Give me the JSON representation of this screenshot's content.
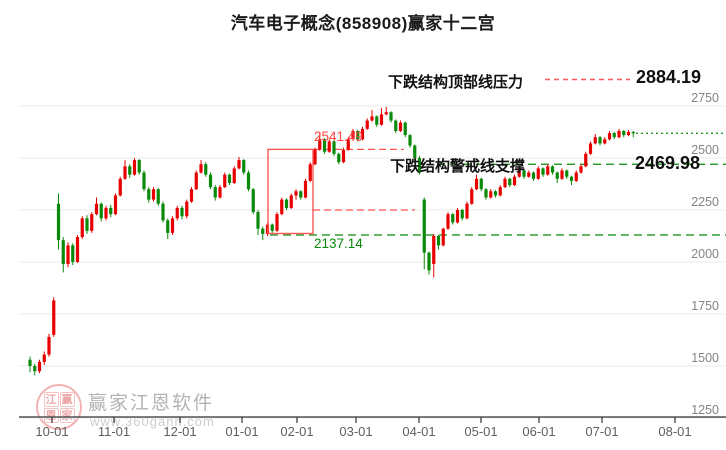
{
  "title": "汽车电子概念(858908)赢家十二宫",
  "annotations": {
    "resistance": {
      "label": "下跌结构顶部线压力",
      "value": "2884.19",
      "price": 2884.19,
      "line_color": "#ff5555",
      "line_style": "dashed"
    },
    "support": {
      "label": "下跌结构警戒线支撑",
      "value": "2469.98",
      "price": 2469.98,
      "line_color": "#0a8a0a",
      "line_style": "dashed"
    }
  },
  "structure_box": {
    "top_label": "2541.49",
    "top_price": 2541.49,
    "bottom_label": "2137.14",
    "bottom_price": 2137.14,
    "mid_price": 2250,
    "color": "#ff5555"
  },
  "watermark": {
    "brand": "赢家江恩软件",
    "url": "www.360gann.com",
    "logo_chars": [
      "江",
      "赢",
      "恩",
      "家"
    ]
  },
  "chart_data": {
    "type": "candlestick",
    "title": "汽车电子概念(858908)赢家十二宫",
    "y_axis": {
      "side": "right",
      "min": 1250,
      "max": 2750,
      "ticks": [
        2750,
        2500,
        2250,
        2000,
        1750,
        1500,
        1250
      ]
    },
    "x_axis": {
      "ticks": [
        "10-01",
        "11-01",
        "12-01",
        "01-01",
        "02-01",
        "03-01",
        "04-01",
        "05-01",
        "06-01",
        "07-01",
        "08-01"
      ],
      "positions": [
        52,
        114,
        180,
        242,
        297,
        356,
        419,
        481,
        539,
        602,
        675
      ]
    },
    "colors": {
      "up": "#e80000",
      "down": "#0a8a0a",
      "grid": "#e8e8e8",
      "axis": "#333333"
    },
    "grid": true,
    "last_price": 2619,
    "candles": [
      [
        1530,
        1545,
        1470,
        1500
      ],
      [
        1500,
        1510,
        1455,
        1475
      ],
      [
        1475,
        1530,
        1465,
        1520
      ],
      [
        1520,
        1570,
        1505,
        1555
      ],
      [
        1555,
        1655,
        1545,
        1640
      ],
      [
        1650,
        1830,
        1640,
        1815
      ],
      [
        2280,
        2330,
        2060,
        2105
      ],
      [
        2105,
        2120,
        1950,
        1990
      ],
      [
        1990,
        2095,
        1975,
        2080
      ],
      [
        2080,
        2090,
        1985,
        2000
      ],
      [
        2000,
        2130,
        1995,
        2120
      ],
      [
        2120,
        2220,
        2110,
        2210
      ],
      [
        2210,
        2225,
        2135,
        2150
      ],
      [
        2150,
        2240,
        2140,
        2230
      ],
      [
        2230,
        2310,
        2225,
        2280
      ],
      [
        2280,
        2285,
        2195,
        2210
      ],
      [
        2210,
        2270,
        2200,
        2260
      ],
      [
        2260,
        2275,
        2215,
        2230
      ],
      [
        2230,
        2330,
        2225,
        2320
      ],
      [
        2320,
        2410,
        2315,
        2400
      ],
      [
        2400,
        2490,
        2395,
        2460
      ],
      [
        2460,
        2470,
        2405,
        2420
      ],
      [
        2420,
        2500,
        2415,
        2490
      ],
      [
        2490,
        2495,
        2420,
        2430
      ],
      [
        2430,
        2440,
        2340,
        2350
      ],
      [
        2350,
        2360,
        2285,
        2300
      ],
      [
        2300,
        2360,
        2290,
        2350
      ],
      [
        2350,
        2355,
        2270,
        2280
      ],
      [
        2280,
        2290,
        2190,
        2200
      ],
      [
        2200,
        2210,
        2110,
        2140
      ],
      [
        2140,
        2220,
        2130,
        2210
      ],
      [
        2210,
        2270,
        2200,
        2260
      ],
      [
        2260,
        2270,
        2205,
        2220
      ],
      [
        2220,
        2300,
        2210,
        2290
      ],
      [
        2290,
        2360,
        2285,
        2350
      ],
      [
        2350,
        2440,
        2345,
        2430
      ],
      [
        2430,
        2490,
        2425,
        2470
      ],
      [
        2470,
        2480,
        2410,
        2420
      ],
      [
        2420,
        2430,
        2350,
        2360
      ],
      [
        2360,
        2370,
        2295,
        2310
      ],
      [
        2310,
        2370,
        2305,
        2360
      ],
      [
        2360,
        2430,
        2355,
        2420
      ],
      [
        2420,
        2425,
        2370,
        2380
      ],
      [
        2380,
        2460,
        2375,
        2450
      ],
      [
        2450,
        2505,
        2445,
        2490
      ],
      [
        2490,
        2495,
        2420,
        2430
      ],
      [
        2430,
        2440,
        2340,
        2350
      ],
      [
        2350,
        2355,
        2230,
        2240
      ],
      [
        2240,
        2250,
        2130,
        2160
      ],
      [
        2160,
        2170,
        2105,
        2135
      ],
      [
        2135,
        2190,
        2125,
        2180
      ],
      [
        2180,
        2185,
        2140,
        2150
      ],
      [
        2150,
        2240,
        2145,
        2230
      ],
      [
        2230,
        2310,
        2225,
        2300
      ],
      [
        2300,
        2305,
        2250,
        2260
      ],
      [
        2260,
        2330,
        2255,
        2320
      ],
      [
        2320,
        2350,
        2300,
        2340
      ],
      [
        2340,
        2345,
        2300,
        2310
      ],
      [
        2310,
        2400,
        2305,
        2390
      ],
      [
        2390,
        2480,
        2385,
        2470
      ],
      [
        2470,
        2550,
        2465,
        2540
      ],
      [
        2540,
        2620,
        2535,
        2590
      ],
      [
        2590,
        2595,
        2520,
        2530
      ],
      [
        2530,
        2590,
        2525,
        2580
      ],
      [
        2580,
        2585,
        2510,
        2520
      ],
      [
        2520,
        2525,
        2470,
        2480
      ],
      [
        2480,
        2550,
        2475,
        2540
      ],
      [
        2540,
        2600,
        2535,
        2590
      ],
      [
        2590,
        2640,
        2585,
        2630
      ],
      [
        2630,
        2635,
        2580,
        2590
      ],
      [
        2590,
        2650,
        2585,
        2640
      ],
      [
        2640,
        2690,
        2635,
        2680
      ],
      [
        2680,
        2730,
        2675,
        2700
      ],
      [
        2700,
        2705,
        2650,
        2660
      ],
      [
        2660,
        2740,
        2655,
        2710
      ],
      [
        2710,
        2745,
        2705,
        2720
      ],
      [
        2720,
        2725,
        2670,
        2680
      ],
      [
        2680,
        2685,
        2620,
        2630
      ],
      [
        2630,
        2680,
        2625,
        2670
      ],
      [
        2670,
        2675,
        2600,
        2610
      ],
      [
        2610,
        2615,
        2550,
        2560
      ],
      [
        2560,
        2565,
        2490,
        2500
      ],
      [
        2500,
        2510,
        2420,
        2430
      ],
      [
        2300,
        2310,
        1965,
        2045
      ],
      [
        2045,
        2050,
        1940,
        1960
      ],
      [
        1990,
        2135,
        1926,
        2125
      ],
      [
        2125,
        2130,
        2060,
        2080
      ],
      [
        2080,
        2165,
        2075,
        2160
      ],
      [
        2160,
        2240,
        2155,
        2230
      ],
      [
        2230,
        2235,
        2180,
        2190
      ],
      [
        2190,
        2260,
        2185,
        2250
      ],
      [
        2250,
        2255,
        2200,
        2210
      ],
      [
        2210,
        2290,
        2205,
        2280
      ],
      [
        2280,
        2360,
        2275,
        2350
      ],
      [
        2350,
        2420,
        2345,
        2400
      ],
      [
        2400,
        2405,
        2340,
        2350
      ],
      [
        2350,
        2355,
        2300,
        2310
      ],
      [
        2310,
        2350,
        2305,
        2340
      ],
      [
        2340,
        2345,
        2310,
        2320
      ],
      [
        2320,
        2370,
        2315,
        2360
      ],
      [
        2360,
        2410,
        2355,
        2400
      ],
      [
        2400,
        2405,
        2360,
        2370
      ],
      [
        2370,
        2420,
        2365,
        2410
      ],
      [
        2410,
        2450,
        2405,
        2440
      ],
      [
        2440,
        2445,
        2400,
        2410
      ],
      [
        2410,
        2440,
        2405,
        2430
      ],
      [
        2430,
        2435,
        2390,
        2400
      ],
      [
        2400,
        2460,
        2395,
        2450
      ],
      [
        2450,
        2455,
        2410,
        2420
      ],
      [
        2420,
        2470,
        2415,
        2460
      ],
      [
        2460,
        2465,
        2420,
        2430
      ],
      [
        2430,
        2435,
        2380,
        2400
      ],
      [
        2400,
        2450,
        2395,
        2440
      ],
      [
        2440,
        2445,
        2400,
        2410
      ],
      [
        2410,
        2415,
        2370,
        2390
      ],
      [
        2390,
        2440,
        2385,
        2430
      ],
      [
        2430,
        2470,
        2425,
        2460
      ],
      [
        2460,
        2530,
        2455,
        2520
      ],
      [
        2520,
        2580,
        2515,
        2570
      ],
      [
        2570,
        2615,
        2565,
        2600
      ],
      [
        2600,
        2605,
        2560,
        2570
      ],
      [
        2570,
        2600,
        2565,
        2590
      ],
      [
        2590,
        2630,
        2585,
        2620
      ],
      [
        2620,
        2625,
        2590,
        2600
      ],
      [
        2600,
        2640,
        2595,
        2630
      ],
      [
        2630,
        2635,
        2600,
        2610
      ],
      [
        2610,
        2635,
        2605,
        2625
      ],
      [
        2625,
        2630,
        2600,
        2619
      ]
    ]
  }
}
